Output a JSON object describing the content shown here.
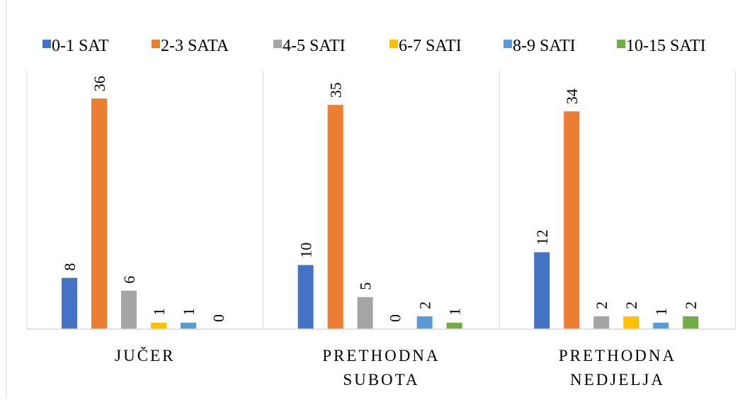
{
  "chart_data": {
    "type": "bar",
    "categories": [
      [
        "JUČER"
      ],
      [
        "PRETHODNA",
        "SUBOTA"
      ],
      [
        "PRETHODNA",
        "NEDJELJA"
      ]
    ],
    "series": [
      {
        "name": "0-1 SAT",
        "color": "#4472C4",
        "values": [
          8,
          10,
          12
        ]
      },
      {
        "name": "2-3 SATA",
        "color": "#ED7D31",
        "values": [
          36,
          35,
          34
        ]
      },
      {
        "name": "4-5 SATI",
        "color": "#A5A5A5",
        "values": [
          6,
          5,
          2
        ]
      },
      {
        "name": "6-7 SATI",
        "color": "#FFC000",
        "values": [
          1,
          0,
          2
        ]
      },
      {
        "name": "8-9 SATI",
        "color": "#5B9BD5",
        "values": [
          1,
          2,
          1
        ]
      },
      {
        "name": "10-15 SATI",
        "color": "#70AD47",
        "values": [
          0,
          1,
          2
        ]
      }
    ],
    "title": "",
    "xlabel": "",
    "ylabel": "",
    "ylim": [
      0,
      40
    ],
    "grid": false,
    "data_labels": true,
    "legend_position": "top"
  }
}
